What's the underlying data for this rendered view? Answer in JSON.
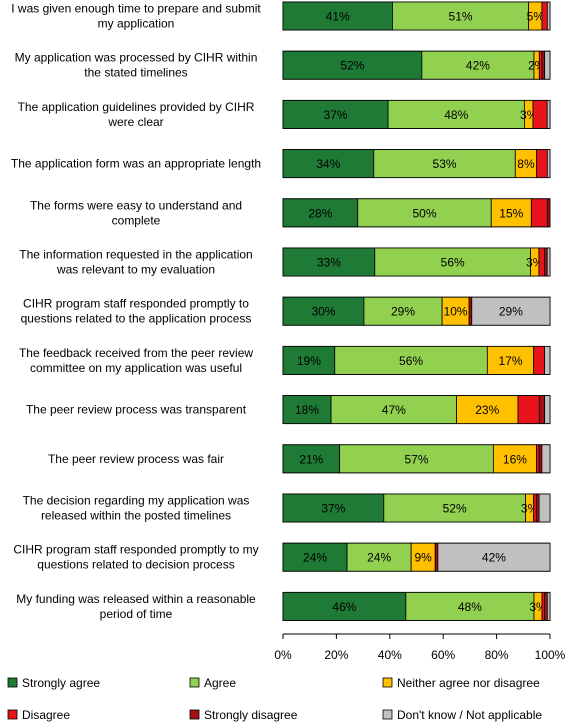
{
  "chart_data": {
    "type": "bar",
    "orientation": "horizontal",
    "stacked": true,
    "categories": [
      [
        "I was given enough time to prepare and submit",
        "my application"
      ],
      [
        "My application was processed by CIHR within",
        "the stated timelines"
      ],
      [
        "The application guidelines provided by CIHR",
        "were clear"
      ],
      [
        "The application form was an appropriate length"
      ],
      [
        "The forms were easy to understand and",
        "complete"
      ],
      [
        "The information requested in the application",
        "was relevant to my evaluation"
      ],
      [
        "CIHR program staff responded promptly to",
        "questions related to the application process"
      ],
      [
        "The feedback received from the peer review",
        "committee on my application was useful"
      ],
      [
        "The peer review process was transparent"
      ],
      [
        "The peer review process was fair"
      ],
      [
        "The decision regarding my application was",
        "released within the posted timelines"
      ],
      [
        "CIHR program staff responded promptly to my",
        "questions related to decision process"
      ],
      [
        "My funding was released within a reasonable",
        "period of time"
      ]
    ],
    "series": [
      {
        "name": "Strongly agree",
        "color": "#1e7a34",
        "values": [
          41,
          52,
          37,
          34,
          28,
          33,
          30,
          19,
          18,
          21,
          37,
          24,
          46
        ]
      },
      {
        "name": "Agree",
        "color": "#92d050",
        "values": [
          51,
          42,
          48,
          53,
          50,
          56,
          29,
          56,
          47,
          57,
          52,
          24,
          48
        ]
      },
      {
        "name": "Neither agree nor disagree",
        "color": "#ffc000",
        "values": [
          5,
          2,
          3,
          8,
          15,
          3,
          10,
          17,
          23,
          16,
          3,
          9,
          3
        ]
      },
      {
        "name": "Disagree",
        "color": "#e8141c",
        "values": [
          2,
          1,
          5,
          4,
          6,
          2,
          0,
          4,
          8,
          1,
          1,
          0,
          1
        ]
      },
      {
        "name": "Strongly disagree",
        "color": "#a50f15",
        "values": [
          0,
          1,
          0,
          0,
          1,
          1,
          1,
          0,
          2,
          1,
          1,
          1,
          1
        ]
      },
      {
        "name": "Don't know / Not applicable",
        "color": "#c0c0c0",
        "values": [
          1,
          2,
          1,
          1,
          0,
          1,
          29,
          2,
          2,
          3,
          4,
          42,
          1
        ]
      }
    ],
    "data_labels": [
      [
        "41%",
        "51%",
        "5%",
        "",
        "",
        ""
      ],
      [
        "52%",
        "42%",
        "2%",
        "",
        "",
        ""
      ],
      [
        "37%",
        "48%",
        "3%",
        "",
        "",
        ""
      ],
      [
        "34%",
        "53%",
        "8%",
        "",
        "",
        ""
      ],
      [
        "28%",
        "50%",
        "15%",
        "",
        "",
        ""
      ],
      [
        "33%",
        "56%",
        "3%",
        "",
        "",
        ""
      ],
      [
        "30%",
        "29%",
        "10%",
        "",
        "",
        "29%"
      ],
      [
        "19%",
        "56%",
        "17%",
        "",
        "",
        ""
      ],
      [
        "18%",
        "47%",
        "23%",
        "",
        "",
        ""
      ],
      [
        "21%",
        "57%",
        "16%",
        "",
        "",
        ""
      ],
      [
        "37%",
        "52%",
        "3%",
        "",
        "",
        ""
      ],
      [
        "24%",
        "24%",
        "9%",
        "",
        "",
        "42%"
      ],
      [
        "46%",
        "48%",
        "3%",
        "",
        "",
        ""
      ]
    ],
    "xlim": [
      0,
      100
    ],
    "xticks": [
      "0%",
      "20%",
      "40%",
      "60%",
      "80%",
      "100%"
    ],
    "grid": false,
    "legend_position": "bottom",
    "title": "",
    "xlabel": "",
    "ylabel": ""
  }
}
